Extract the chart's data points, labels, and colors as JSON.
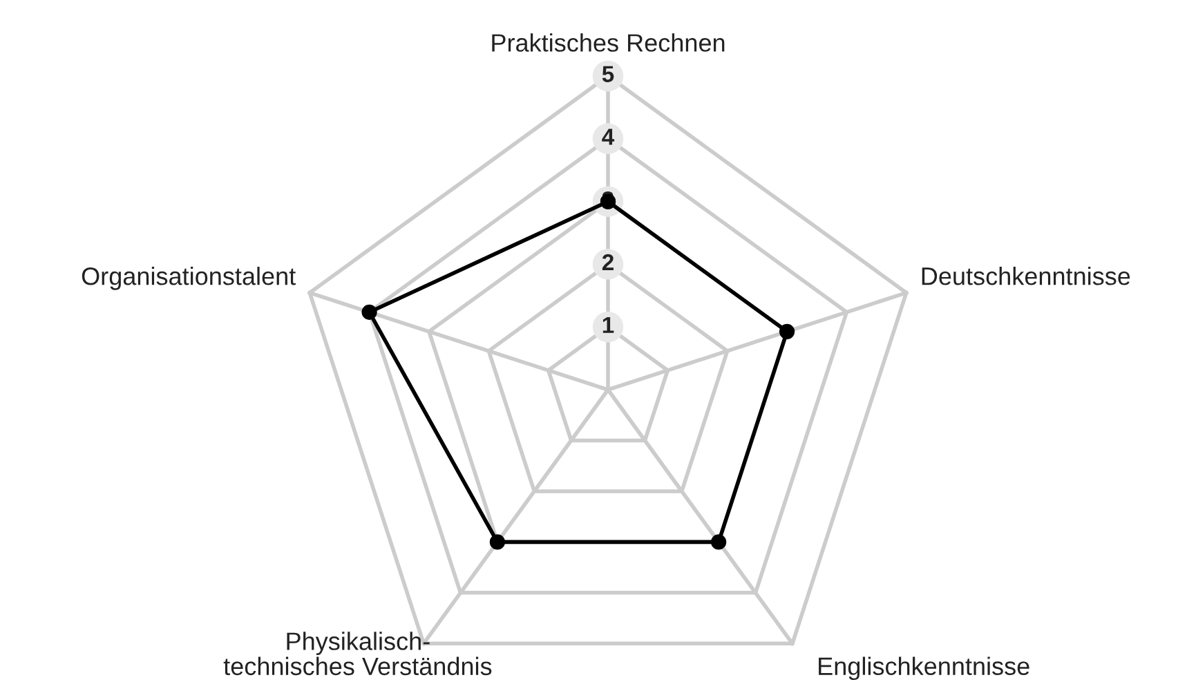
{
  "chart_data": {
    "type": "radar",
    "categories": [
      "Praktisches Rechnen",
      "Deutschkenntnisse",
      "Englischkenntnisse",
      "Physikalisch-\ntechnisches Verständnis",
      "Organisationstalent"
    ],
    "series": [
      {
        "color": "#000000",
        "values": [
          3,
          3,
          3,
          3,
          4
        ]
      }
    ],
    "ylim": [
      0,
      5
    ],
    "yticks": [
      1,
      2,
      3,
      4,
      5
    ],
    "grid": true,
    "marker": "circle",
    "line_style": "solid"
  }
}
